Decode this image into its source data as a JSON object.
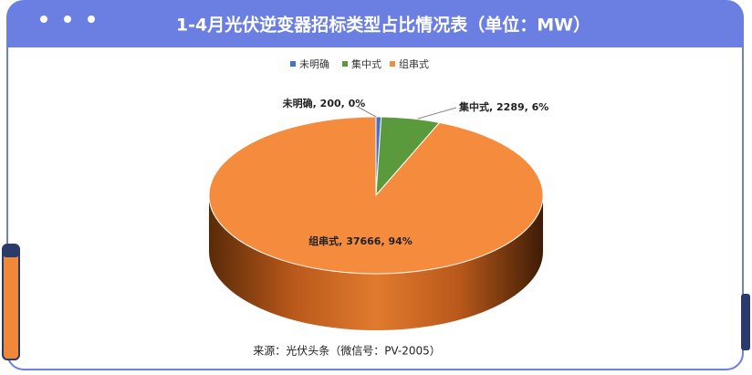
{
  "chart_data": {
    "type": "pie",
    "title": "1-4月光伏逆变器招标类型占比情况表（单位：MW）",
    "categories": [
      "未明确",
      "集中式",
      "组串式"
    ],
    "values": [
      200,
      2289,
      37666
    ],
    "value_labels": [
      "未明确, 200, 0%",
      "集中式, 2289, 6%",
      "组串式, 37666, 94%"
    ],
    "colors": [
      "#4472c4",
      "#5b9a3c",
      "#f58b3d"
    ],
    "legend": "top",
    "source": "来源：光伏头条（微信号：PV-2005）"
  }
}
